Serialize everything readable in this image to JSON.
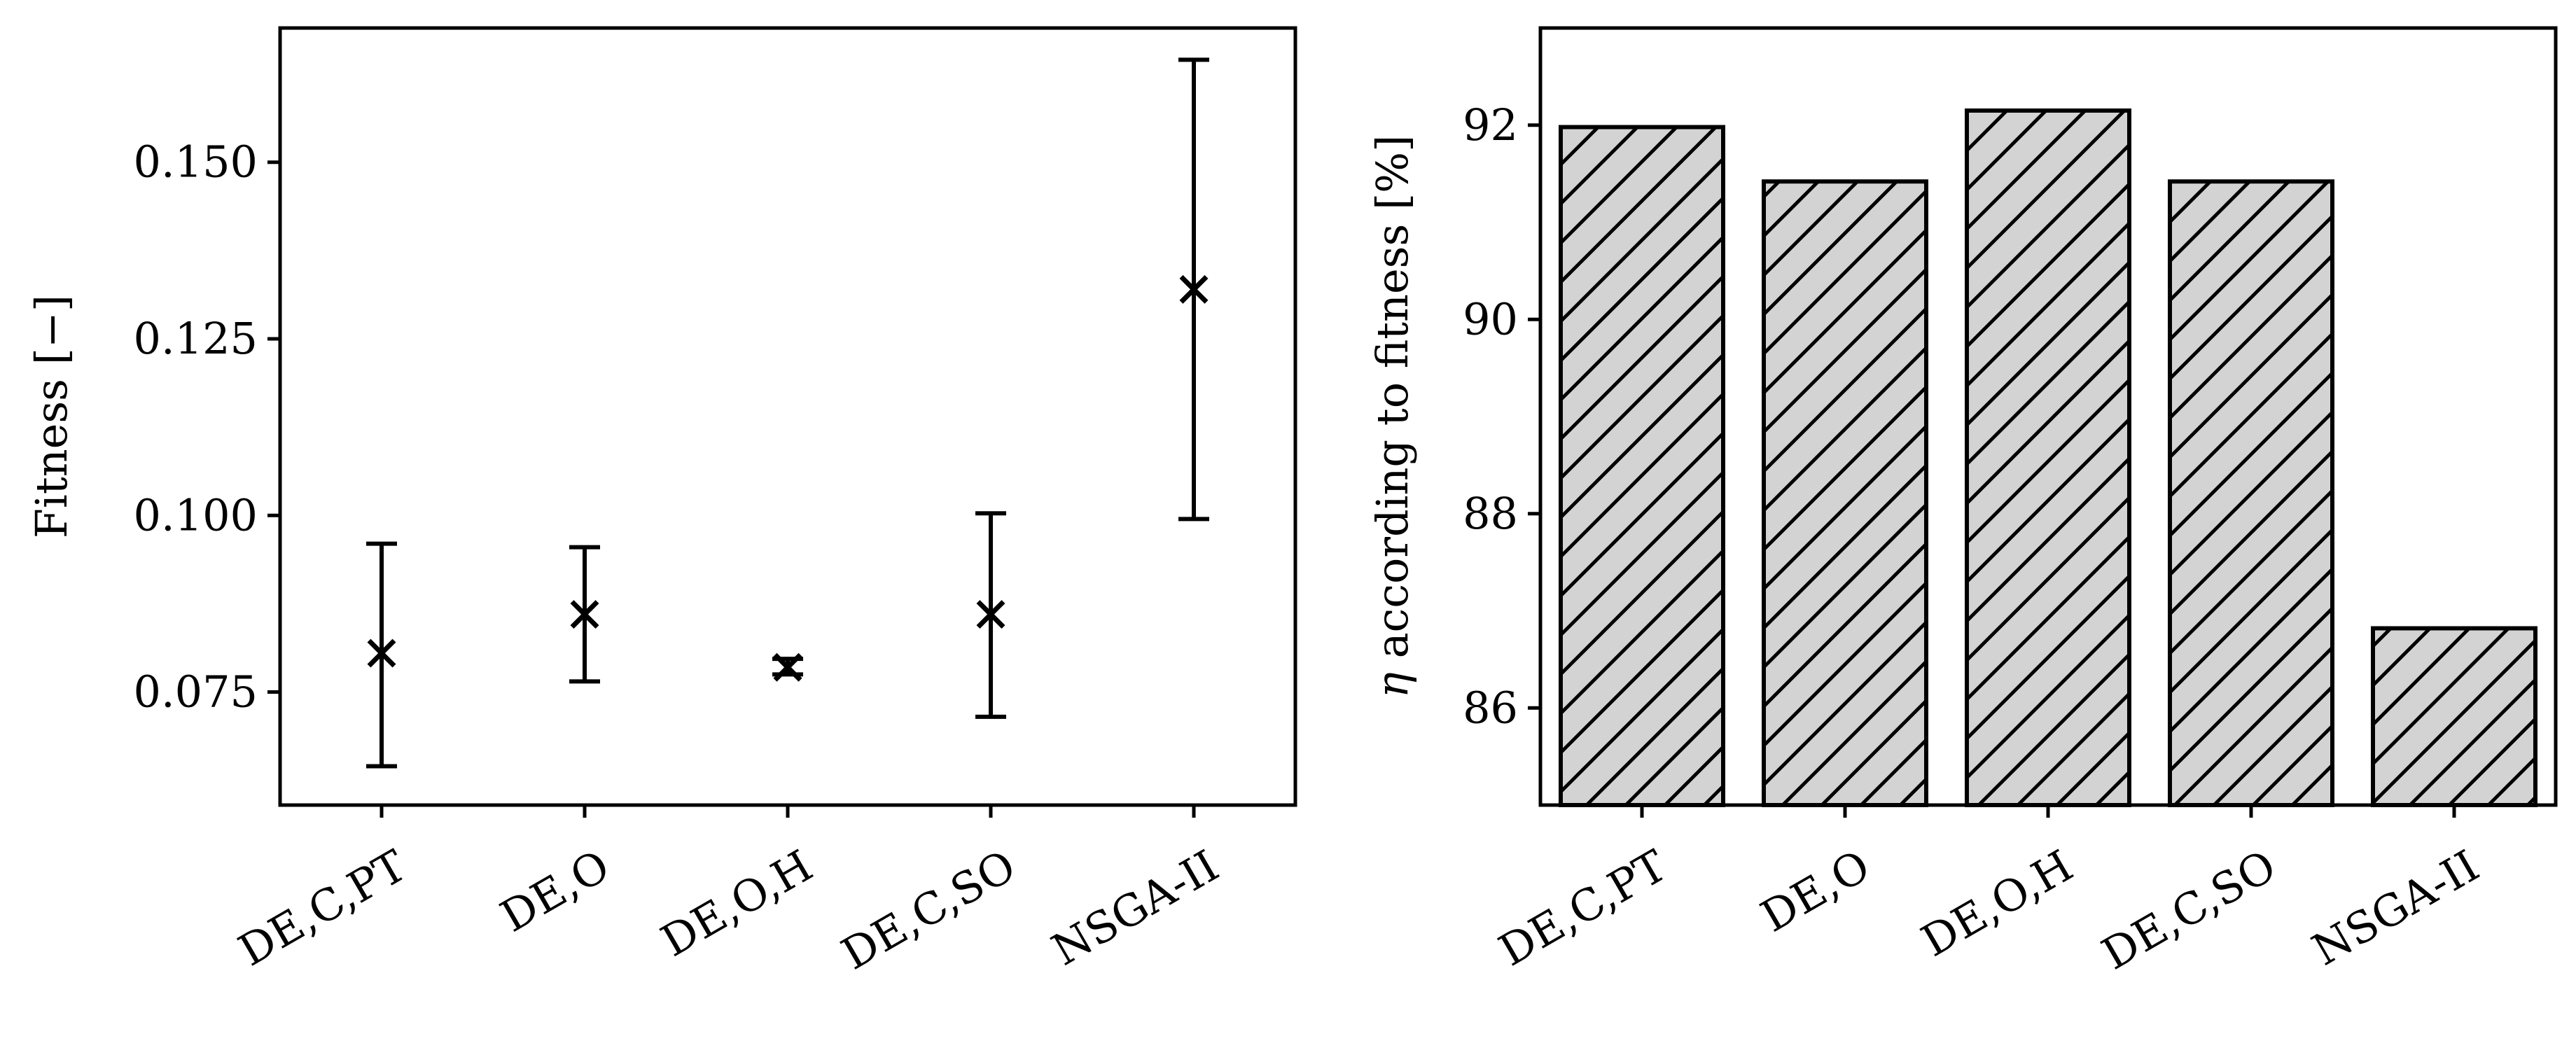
{
  "chart_data": [
    {
      "type": "scatter",
      "variant": "errorbar",
      "categories": [
        "DE,C,PT",
        "DE,O",
        "DE,O,H",
        "DE,C,SO",
        "NSGA-II"
      ],
      "mean": [
        0.0805,
        0.086,
        0.0785,
        0.086,
        0.132
      ],
      "lower": [
        0.0645,
        0.0765,
        0.0775,
        0.0715,
        0.0995
      ],
      "upper": [
        0.096,
        0.0955,
        0.0797,
        0.1003,
        0.1645
      ],
      "ylabel": "Fitness [−]",
      "xlabel": "",
      "ylim": [
        0.059,
        0.169
      ],
      "yticks": [
        0.075,
        0.1,
        0.125,
        0.15
      ],
      "ytick_labels": [
        "0.075",
        "0.100",
        "0.125",
        "0.150"
      ],
      "marker": "x",
      "grid": false
    },
    {
      "type": "bar",
      "categories": [
        "DE,C,PT",
        "DE,O",
        "DE,O,H",
        "DE,C,SO",
        "NSGA-II"
      ],
      "values": [
        91.98,
        91.42,
        92.15,
        91.42,
        86.82
      ],
      "ylabel_symbol": "η",
      "ylabel_text": " according to fitness [%]",
      "xlabel": "",
      "ylim": [
        85.0,
        93.0
      ],
      "yticks": [
        86,
        88,
        90,
        92
      ],
      "ytick_labels": [
        "86",
        "88",
        "90",
        "92"
      ],
      "bar_fill": "#d3d3d3",
      "hatch": "diagonal",
      "grid": false
    }
  ]
}
